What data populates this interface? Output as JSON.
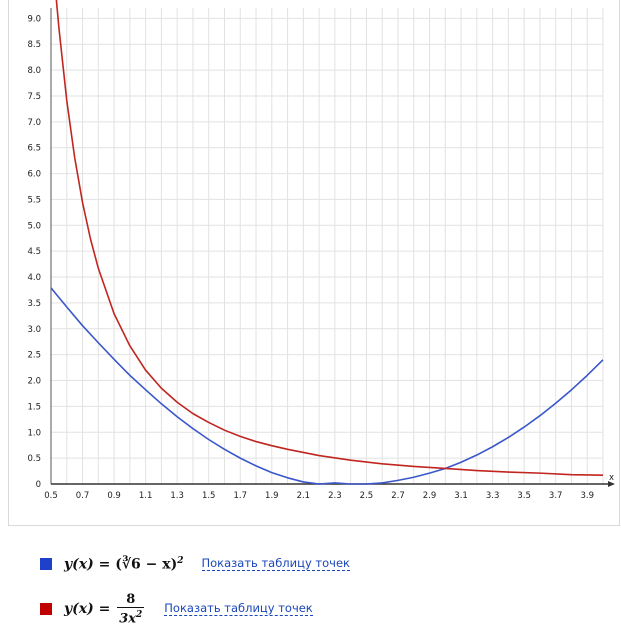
{
  "chart_data": {
    "type": "line",
    "xlim": [
      0.5,
      4.0
    ],
    "ylim": [
      0,
      9.2
    ],
    "x_ticks": [
      "0.5",
      "0.7",
      "0.9",
      "1.1",
      "1.3",
      "1.5",
      "1.7",
      "1.9",
      "2.1",
      "2.3",
      "2.5",
      "2.7",
      "2.9",
      "3.1",
      "3.3",
      "3.5",
      "3.7",
      "3.9"
    ],
    "y_ticks": [
      "0",
      "0.5",
      "1.0",
      "1.5",
      "2.0",
      "2.5",
      "3.0",
      "3.5",
      "4.0",
      "4.5",
      "5.0",
      "5.5",
      "6.0",
      "6.5",
      "7.0",
      "7.5",
      "8.0",
      "8.5",
      "9.0"
    ],
    "x_axis_arrow_label": "x",
    "grid": true,
    "series": [
      {
        "name": "y(x) = (∛6 − x)²",
        "color": "#3a57c9",
        "x": [
          0.5,
          0.6,
          0.7,
          0.8,
          0.9,
          1.0,
          1.1,
          1.2,
          1.3,
          1.4,
          1.5,
          1.6,
          1.7,
          1.8,
          1.9,
          2.0,
          2.1,
          2.2,
          2.3,
          2.4,
          2.45,
          2.5,
          2.6,
          2.7,
          2.8,
          2.9,
          3.0,
          3.1,
          3.2,
          3.3,
          3.4,
          3.5,
          3.6,
          3.7,
          3.8,
          3.9,
          4.0
        ],
        "y": [
          3.79,
          3.42,
          3.06,
          2.73,
          2.41,
          2.1,
          1.82,
          1.55,
          1.3,
          1.07,
          0.86,
          0.67,
          0.5,
          0.35,
          0.22,
          0.12,
          0.04,
          0.0,
          0.02,
          0.0,
          0.0,
          0.0,
          0.02,
          0.07,
          0.13,
          0.21,
          0.3,
          0.42,
          0.56,
          0.72,
          0.9,
          1.1,
          1.32,
          1.56,
          1.82,
          2.1,
          2.4
        ]
      },
      {
        "name": "y(x) = 8 / (3x²)",
        "color": "#c0261f",
        "x": [
          0.53,
          0.55,
          0.6,
          0.65,
          0.7,
          0.75,
          0.8,
          0.9,
          1.0,
          1.1,
          1.2,
          1.3,
          1.4,
          1.5,
          1.6,
          1.7,
          1.8,
          1.9,
          2.0,
          2.2,
          2.4,
          2.6,
          2.8,
          3.0,
          3.2,
          3.4,
          3.6,
          3.8,
          4.0
        ],
        "y": [
          9.49,
          8.82,
          7.41,
          6.31,
          5.44,
          4.74,
          4.17,
          3.29,
          2.67,
          2.2,
          1.85,
          1.58,
          1.36,
          1.19,
          1.04,
          0.92,
          0.82,
          0.74,
          0.67,
          0.55,
          0.46,
          0.39,
          0.34,
          0.3,
          0.26,
          0.23,
          0.21,
          0.18,
          0.17
        ]
      }
    ]
  },
  "legend": [
    {
      "color": "#1f40c8",
      "lhs": "y(x) = ",
      "formula_text": "(∛6 − x)",
      "exponent": "2",
      "link": "Показать таблицу точек"
    },
    {
      "color": "#c00000",
      "lhs": "y(x) = ",
      "numerator": "8",
      "denominator": "3x",
      "den_exponent": "2",
      "link": "Показать таблицу точек"
    }
  ]
}
